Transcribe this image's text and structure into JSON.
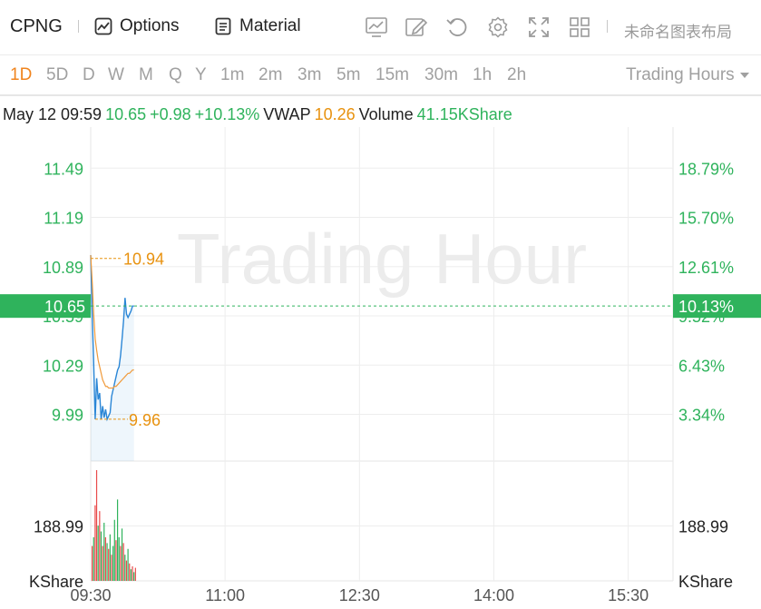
{
  "toolbar": {
    "symbol": "CPNG",
    "options_label": "Options",
    "material_label": "Material",
    "icons": [
      "chart-type-icon",
      "draw-icon",
      "undo-icon",
      "settings-icon",
      "fullscreen-icon",
      "layout-grid-icon"
    ],
    "layout_name": "未命名图表布局"
  },
  "periods": [
    "1D",
    "5D",
    "D",
    "W",
    "M",
    "Q",
    "Y",
    "1m",
    "2m",
    "3m",
    "5m",
    "15m",
    "30m",
    "1h",
    "2h"
  ],
  "active_period": "1D",
  "trading_hours_label": "Trading Hours",
  "info": {
    "datetime": "May 12 09:59",
    "price": "10.65",
    "change": "+0.98",
    "change_pct": "+10.13%",
    "vwap_label": "VWAP",
    "vwap": "10.26",
    "volume_label": "Volume",
    "volume": "41.15KShare"
  },
  "watermark": "Trading Hour",
  "colors": {
    "up": "#2fb35c",
    "down": "#e94a4a",
    "price_line": "#2a86d6",
    "vwap_line": "#f09a3a",
    "highlight": "#e8920f"
  },
  "chart_data": {
    "type": "line",
    "x_ticks": [
      "09:30",
      "11:00",
      "12:30",
      "14:00",
      "15:30"
    ],
    "y_ticks_left": [
      "11.49",
      "11.19",
      "10.89",
      "10.59",
      "10.29",
      "9.99"
    ],
    "y_ticks_right": [
      "18.79%",
      "15.70%",
      "12.61%",
      "9.52%",
      "6.43%",
      "3.34%"
    ],
    "current_price_label": "10.65",
    "current_pct_label": "10.13%",
    "high_label": "10.94",
    "low_label": "9.96",
    "y_range": [
      9.86,
      11.63
    ],
    "series": [
      {
        "kind": "price",
        "x": [
          "09:30",
          "09:31",
          "09:32",
          "09:33",
          "09:34",
          "09:35",
          "09:36",
          "09:37",
          "09:38",
          "09:39",
          "09:40",
          "09:41",
          "09:42",
          "09:43",
          "09:44",
          "09:45",
          "09:46",
          "09:47",
          "09:48",
          "09:49",
          "09:50",
          "09:51",
          "09:52",
          "09:53",
          "09:54",
          "09:55",
          "09:56",
          "09:57",
          "09:58",
          "09:59"
        ],
        "values": [
          10.96,
          10.6,
          10.3,
          9.96,
          10.21,
          10.08,
          10.12,
          9.96,
          10.04,
          9.97,
          10.02,
          9.96,
          9.98,
          10.0,
          10.1,
          10.14,
          10.18,
          10.22,
          10.26,
          10.28,
          10.35,
          10.45,
          10.56,
          10.7,
          10.6,
          10.58,
          10.6,
          10.62,
          10.65,
          10.65
        ]
      },
      {
        "kind": "vwap",
        "values": [
          10.96,
          10.8,
          10.6,
          10.45,
          10.38,
          10.32,
          10.28,
          10.24,
          10.2,
          10.18,
          10.16,
          10.16,
          10.15,
          10.15,
          10.15,
          10.15,
          10.16,
          10.16,
          10.17,
          10.18,
          10.19,
          10.2,
          10.21,
          10.22,
          10.23,
          10.24,
          10.24,
          10.25,
          10.26,
          10.26
        ]
      }
    ],
    "volume_ticks": [
      "188.99",
      "KShare"
    ],
    "volume_max": 381,
    "volume": [
      {
        "v": 120,
        "up": false
      },
      {
        "v": 150,
        "up": true
      },
      {
        "v": 260,
        "up": false
      },
      {
        "v": 381,
        "up": false
      },
      {
        "v": 190,
        "up": true
      },
      {
        "v": 240,
        "up": false
      },
      {
        "v": 170,
        "up": true
      },
      {
        "v": 120,
        "up": false
      },
      {
        "v": 200,
        "up": true
      },
      {
        "v": 150,
        "up": false
      },
      {
        "v": 130,
        "up": true
      },
      {
        "v": 110,
        "up": false
      },
      {
        "v": 160,
        "up": true
      },
      {
        "v": 90,
        "up": false
      },
      {
        "v": 120,
        "up": true
      },
      {
        "v": 210,
        "up": true
      },
      {
        "v": 140,
        "up": false
      },
      {
        "v": 280,
        "up": true
      },
      {
        "v": 150,
        "up": true
      },
      {
        "v": 120,
        "up": false
      },
      {
        "v": 180,
        "up": true
      },
      {
        "v": 130,
        "up": false
      },
      {
        "v": 90,
        "up": true
      },
      {
        "v": 70,
        "up": false
      },
      {
        "v": 110,
        "up": true
      },
      {
        "v": 60,
        "up": false
      },
      {
        "v": 40,
        "up": true
      },
      {
        "v": 50,
        "up": false
      },
      {
        "v": 30,
        "up": true
      },
      {
        "v": 45,
        "up": false
      }
    ]
  }
}
